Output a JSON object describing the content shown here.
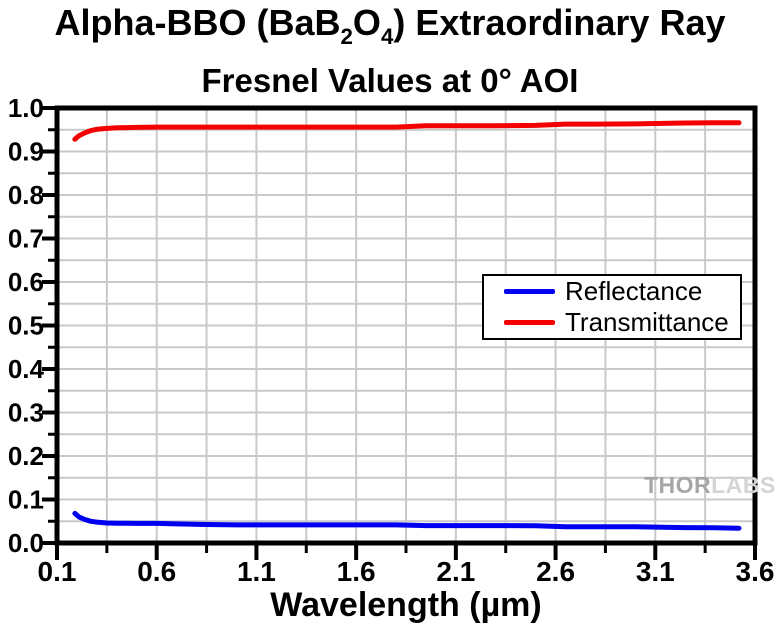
{
  "title": {
    "line1_parts": [
      {
        "text": "Alpha-BBO (BaB"
      },
      {
        "text": "2",
        "sub": true
      },
      {
        "text": "O"
      },
      {
        "text": "4",
        "sub": true
      },
      {
        "text": ") Extraordinary Ray"
      }
    ],
    "line2": "Fresnel Values at 0° AOI"
  },
  "x_axis_label": "Wavelength (µm)",
  "watermark": {
    "left": "THOR",
    "right": "LABS"
  },
  "legend": {
    "entries": [
      {
        "label": "Reflectance",
        "color": "#0000f0"
      },
      {
        "label": "Transmittance",
        "color": "#f40000"
      }
    ]
  },
  "chart_data": {
    "type": "line",
    "title": "Alpha-BBO (BaB2O4) Extraordinary Ray — Fresnel Values at 0° AOI",
    "xlabel": "Wavelength (µm)",
    "ylabel": "",
    "xlim": [
      0.1,
      3.6
    ],
    "ylim": [
      0.0,
      1.0
    ],
    "x_tick_values": [
      0.1,
      0.6,
      1.1,
      1.6,
      2.1,
      2.6,
      3.1,
      3.6
    ],
    "x_tick_labels": [
      "0.1",
      "0.6",
      "1.1",
      "1.6",
      "2.1",
      "2.6",
      "3.1",
      "3.6"
    ],
    "y_tick_values": [
      0.0,
      0.1,
      0.2,
      0.3,
      0.4,
      0.5,
      0.6,
      0.7,
      0.8,
      0.9,
      1.0
    ],
    "y_tick_labels": [
      "0.0",
      "0.1",
      "0.2",
      "0.3",
      "0.4",
      "0.5",
      "0.6",
      "0.7",
      "0.8",
      "0.9",
      "1.0"
    ],
    "x_minor_step": 0.25,
    "y_minor_step": 0.05,
    "grid": "minor",
    "grid_color": "#c9c9c9",
    "legend_position": "middle-right",
    "series": [
      {
        "name": "Reflectance",
        "color": "#0000f0",
        "x": [
          0.19,
          0.21,
          0.24,
          0.27,
          0.3,
          0.35,
          0.4,
          0.5,
          0.6,
          0.7,
          0.85,
          1.0,
          1.2,
          1.4,
          1.6,
          1.8,
          1.95,
          2.1,
          2.3,
          2.5,
          2.65,
          2.8,
          3.0,
          3.25,
          3.4,
          3.52
        ],
        "y": [
          0.068,
          0.06,
          0.054,
          0.05,
          0.048,
          0.046,
          0.0455,
          0.045,
          0.045,
          0.044,
          0.0425,
          0.0415,
          0.0415,
          0.0415,
          0.0415,
          0.0415,
          0.04,
          0.04,
          0.04,
          0.0398,
          0.0375,
          0.0375,
          0.0373,
          0.0355,
          0.035,
          0.034
        ]
      },
      {
        "name": "Transmittance",
        "color": "#f40000",
        "x": [
          0.19,
          0.21,
          0.24,
          0.27,
          0.3,
          0.35,
          0.4,
          0.5,
          0.6,
          0.8,
          1.0,
          1.2,
          1.4,
          1.6,
          1.8,
          1.95,
          2.1,
          2.3,
          2.5,
          2.65,
          2.8,
          3.0,
          3.25,
          3.4,
          3.52
        ],
        "y": [
          0.928,
          0.936,
          0.943,
          0.948,
          0.951,
          0.953,
          0.9545,
          0.9555,
          0.956,
          0.956,
          0.956,
          0.956,
          0.956,
          0.956,
          0.956,
          0.959,
          0.959,
          0.959,
          0.96,
          0.963,
          0.963,
          0.9635,
          0.9655,
          0.966,
          0.966
        ]
      }
    ]
  }
}
